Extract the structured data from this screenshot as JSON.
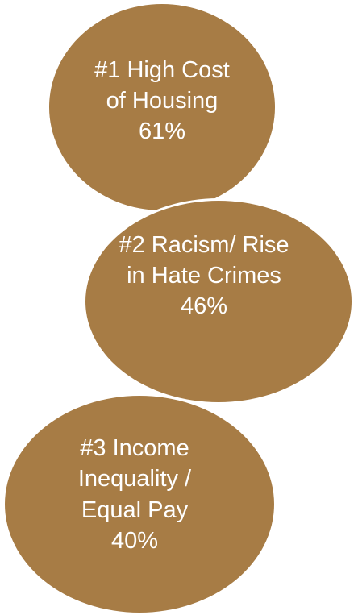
{
  "items": [
    {
      "lines": [
        "#1 High Cost",
        "of Housing",
        "61%"
      ]
    },
    {
      "lines": [
        "#2 Racism/ Rise",
        "in Hate Crimes",
        "46%"
      ]
    },
    {
      "lines": [
        "#3 Income",
        "Inequality /",
        "Equal Pay",
        "40%"
      ]
    }
  ],
  "colors": {
    "bubble_fill": "#a77c45",
    "bubble_text": "#ffffff",
    "bubble_border": "#ffffff",
    "background": "#ffffff"
  }
}
